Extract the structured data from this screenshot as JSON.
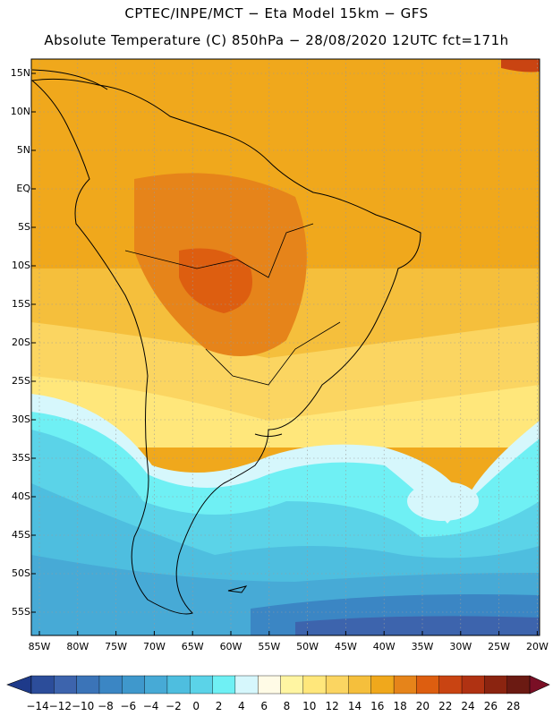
{
  "header": {
    "line1": "CPTEC/INPE/MCT −  Eta Model 15km − GFS",
    "line2": "Absolute Temperature (C) 850hPa − 28/08/2020 12UTC fct=171h"
  },
  "map": {
    "lon_labels": [
      "85W",
      "80W",
      "75W",
      "70W",
      "65W",
      "60W",
      "55W",
      "50W",
      "45W",
      "40W",
      "35W",
      "30W",
      "25W",
      "20W"
    ],
    "lat_labels": [
      "15N",
      "10N",
      "5N",
      "EQ",
      "5S",
      "10S",
      "15S",
      "20S",
      "25S",
      "30S",
      "35S",
      "40S",
      "45S",
      "50S",
      "55S"
    ],
    "region": "South America"
  },
  "colorbar": {
    "labels": [
      "-14",
      "-12",
      "-10",
      "-8",
      "-6",
      "-4",
      "-2",
      "0",
      "2",
      "4",
      "6",
      "8",
      "10",
      "12",
      "14",
      "16",
      "18",
      "20",
      "22",
      "24",
      "26",
      "28"
    ],
    "colors": [
      "#2c4d9a",
      "#3d64ad",
      "#3b74b8",
      "#3b86c4",
      "#3f98cc",
      "#47aad6",
      "#4ebedf",
      "#5bd3e8",
      "#6ff0f4",
      "#d6f7fc",
      "#fffbe6",
      "#fff5a2",
      "#ffe77b",
      "#fbd561",
      "#f5bf3c",
      "#f0a81c",
      "#e6841a",
      "#dd5e10",
      "#c94412",
      "#b03212",
      "#8b2410",
      "#6b1a12"
    ],
    "low_arrow_color": "#1e3a8a",
    "high_arrow_color": "#7a0f25"
  }
}
